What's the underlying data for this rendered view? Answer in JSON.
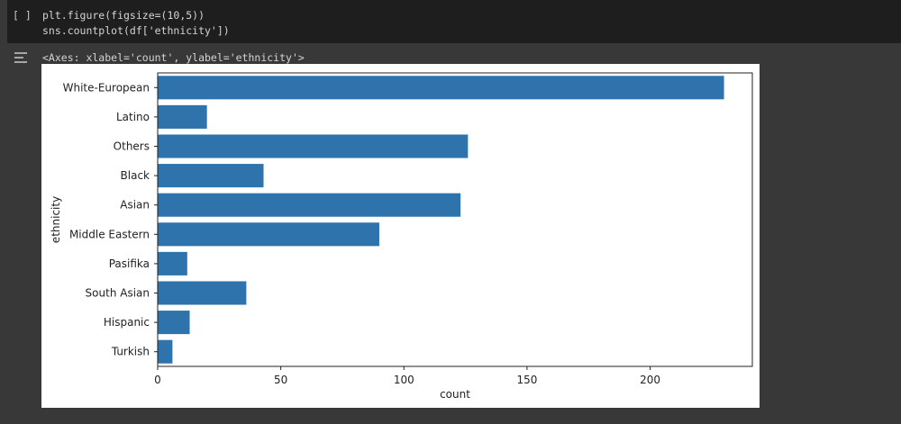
{
  "cell": {
    "run_marker": "[ ]",
    "code": [
      "plt.figure(figsize=(10,5))",
      "sns.countplot(df['ethnicity'])"
    ],
    "output_text": "<Axes: xlabel='count', ylabel='ethnicity'>"
  },
  "chart_data": {
    "type": "bar",
    "orientation": "horizontal",
    "categories": [
      "White-European",
      "Latino",
      "Others",
      "Black",
      "Asian",
      "Middle Eastern",
      "Pasifika",
      "South Asian",
      "Hispanic",
      "Turkish"
    ],
    "values": [
      230,
      20,
      126,
      43,
      123,
      90,
      12,
      36,
      13,
      6
    ],
    "color": "#2f73ac",
    "xlim": [
      0,
      241.5
    ],
    "xticks": [
      0,
      50,
      100,
      150,
      200
    ],
    "xlabel": "count",
    "ylabel": "ethnicity"
  }
}
